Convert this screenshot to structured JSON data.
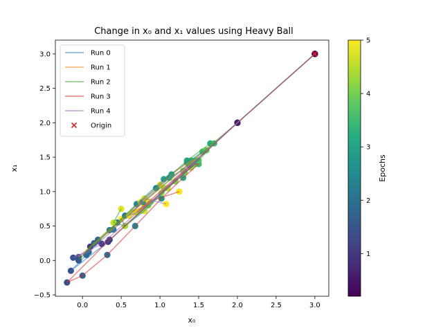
{
  "chart_data": {
    "type": "scatter",
    "title": "Change in x₀ and x₁ values using Heavy Ball",
    "xlabel": "x₀",
    "ylabel": "x₁",
    "xlim": [
      -0.35,
      3.18
    ],
    "ylim": [
      -0.52,
      3.2
    ],
    "xticks": [
      0.0,
      0.5,
      1.0,
      1.5,
      2.0,
      2.5,
      3.0
    ],
    "xtick_labels": [
      "0.0",
      "0.5",
      "1.0",
      "1.5",
      "2.0",
      "2.5",
      "3.0"
    ],
    "yticks": [
      -0.5,
      0.0,
      0.5,
      1.0,
      1.5,
      2.0,
      2.5,
      3.0
    ],
    "ytick_labels": [
      "−0.5",
      "0.0",
      "0.5",
      "1.0",
      "1.5",
      "2.0",
      "2.5",
      "3.0"
    ],
    "grid": false,
    "legend_position": "top-left",
    "colorbar": {
      "label": "Epochs",
      "colormap": "viridis",
      "range": [
        0.2,
        5.0
      ],
      "ticks": [
        1,
        2,
        3,
        4,
        5
      ],
      "tick_labels": [
        "1",
        "2",
        "3",
        "4",
        "5"
      ]
    },
    "series": [
      {
        "name": "Run 0",
        "color": "#1f77b4",
        "points": [
          [
            3.0,
            3.0,
            0.2
          ],
          [
            2.0,
            2.0,
            0.6
          ],
          [
            0.33,
            0.27,
            1.0
          ],
          [
            -0.15,
            -0.15,
            1.4
          ],
          [
            0.05,
            0.08,
            1.8
          ],
          [
            0.35,
            0.44,
            2.2
          ],
          [
            0.7,
            0.82,
            2.6
          ],
          [
            1.05,
            1.18,
            3.0
          ],
          [
            1.35,
            1.42,
            3.2
          ],
          [
            1.55,
            1.58,
            3.6
          ],
          [
            1.6,
            1.6,
            3.9
          ],
          [
            1.4,
            1.35,
            4.2
          ],
          [
            1.1,
            1.05,
            4.5
          ],
          [
            0.8,
            0.72,
            4.7
          ],
          [
            0.55,
            0.5,
            4.9
          ],
          [
            0.5,
            0.6,
            5.0
          ]
        ]
      },
      {
        "name": "Run 1",
        "color": "#ff7f0e",
        "points": [
          [
            3.0,
            3.0,
            0.2
          ],
          [
            2.0,
            2.0,
            0.6
          ],
          [
            0.2,
            0.28,
            1.0
          ],
          [
            -0.05,
            0.05,
            1.4
          ],
          [
            0.15,
            0.25,
            1.8
          ],
          [
            0.45,
            0.55,
            2.2
          ],
          [
            0.8,
            0.9,
            2.6
          ],
          [
            1.15,
            1.25,
            3.0
          ],
          [
            1.4,
            1.45,
            3.3
          ],
          [
            1.45,
            1.45,
            3.6
          ],
          [
            1.3,
            1.3,
            3.9
          ],
          [
            1.05,
            1.05,
            4.2
          ],
          [
            0.8,
            0.8,
            4.5
          ],
          [
            0.65,
            0.7,
            4.7
          ],
          [
            0.75,
            0.85,
            4.9
          ],
          [
            1.0,
            1.1,
            5.0
          ]
        ]
      },
      {
        "name": "Run 2",
        "color": "#2ca02c",
        "points": [
          [
            3.0,
            3.0,
            0.2
          ],
          [
            2.0,
            2.0,
            0.6
          ],
          [
            0.1,
            0.2,
            1.0
          ],
          [
            -0.05,
            0.0,
            1.4
          ],
          [
            0.2,
            0.3,
            1.8
          ],
          [
            0.55,
            0.65,
            2.2
          ],
          [
            0.95,
            1.05,
            2.6
          ],
          [
            1.35,
            1.45,
            3.0
          ],
          [
            1.65,
            1.7,
            3.2
          ],
          [
            1.7,
            1.7,
            3.5
          ],
          [
            1.5,
            1.45,
            3.8
          ],
          [
            1.2,
            1.15,
            4.0
          ],
          [
            0.85,
            0.8,
            4.2
          ],
          [
            0.55,
            0.5,
            4.4
          ],
          [
            0.4,
            0.55,
            4.6
          ],
          [
            0.5,
            0.75,
            4.8
          ]
        ]
      },
      {
        "name": "Run 3",
        "color": "#d62728",
        "points": [
          [
            3.0,
            3.0,
            0.2
          ],
          [
            2.0,
            2.0,
            0.6
          ],
          [
            0.35,
            0.3,
            1.0
          ],
          [
            -0.2,
            -0.32,
            1.4
          ],
          [
            0.0,
            -0.22,
            1.7
          ],
          [
            0.32,
            0.08,
            2.0
          ],
          [
            0.68,
            0.5,
            2.4
          ],
          [
            1.02,
            0.9,
            2.8
          ],
          [
            1.3,
            1.2,
            3.2
          ],
          [
            1.5,
            1.4,
            3.5
          ],
          [
            1.45,
            1.4,
            3.8
          ],
          [
            1.2,
            1.15,
            4.1
          ],
          [
            0.88,
            0.85,
            4.4
          ],
          [
            0.7,
            0.7,
            4.7
          ],
          [
            0.85,
            0.85,
            4.9
          ],
          [
            1.25,
            1.0,
            5.0
          ]
        ]
      },
      {
        "name": "Run 4",
        "color": "#9467bd",
        "points": [
          [
            3.0,
            3.0,
            0.2
          ],
          [
            2.0,
            2.0,
            0.6
          ],
          [
            0.25,
            0.24,
            1.0
          ],
          [
            -0.12,
            0.04,
            1.4
          ],
          [
            0.08,
            0.12,
            1.8
          ],
          [
            0.4,
            0.45,
            2.2
          ],
          [
            0.78,
            0.85,
            2.6
          ],
          [
            1.12,
            1.2,
            3.0
          ],
          [
            1.38,
            1.38,
            3.4
          ],
          [
            1.48,
            1.45,
            3.7
          ],
          [
            1.32,
            1.28,
            4.0
          ],
          [
            1.02,
            0.98,
            4.3
          ],
          [
            0.75,
            0.72,
            4.6
          ],
          [
            0.6,
            0.65,
            4.8
          ],
          [
            0.8,
            0.9,
            4.9
          ],
          [
            1.08,
            0.82,
            5.0
          ]
        ]
      }
    ],
    "origin": {
      "name": "Origin",
      "x": 3.0,
      "y": 3.0,
      "marker": "x",
      "color": "#d62728"
    }
  }
}
